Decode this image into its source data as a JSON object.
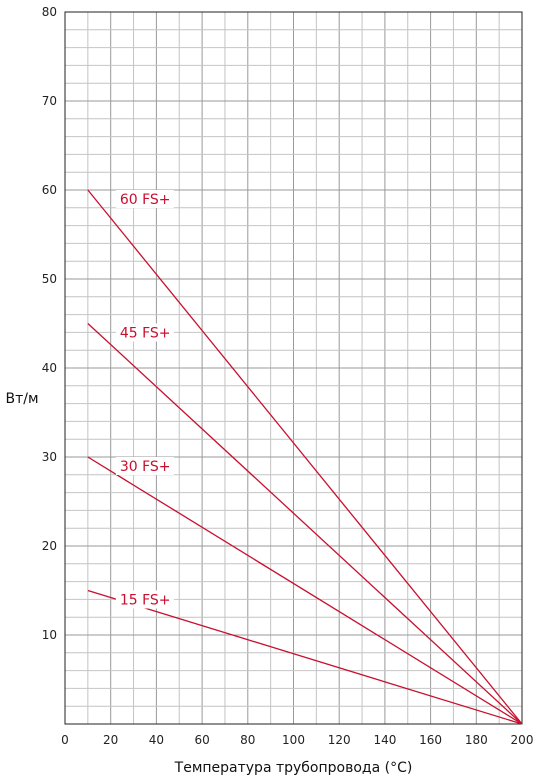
{
  "chart_data": {
    "type": "line",
    "title": "",
    "xlabel": "Температура трубопровода  (°C)",
    "ylabel": "Вт/м",
    "xlim": [
      0,
      200
    ],
    "ylim": [
      0,
      80
    ],
    "x_ticks": [
      0,
      20,
      40,
      60,
      80,
      100,
      120,
      140,
      160,
      180,
      200
    ],
    "y_ticks": [
      10,
      20,
      30,
      40,
      50,
      60,
      70,
      80
    ],
    "grid": true,
    "series_color": "#c8102e",
    "series": [
      {
        "name": "60 FS+",
        "x": [
          10,
          200
        ],
        "y": [
          60,
          0
        ]
      },
      {
        "name": "45 FS+",
        "x": [
          10,
          200
        ],
        "y": [
          45,
          0
        ]
      },
      {
        "name": "30 FS+",
        "x": [
          10,
          200
        ],
        "y": [
          30,
          0
        ]
      },
      {
        "name": "15 FS+",
        "x": [
          10,
          200
        ],
        "y": [
          15,
          0
        ]
      }
    ]
  }
}
